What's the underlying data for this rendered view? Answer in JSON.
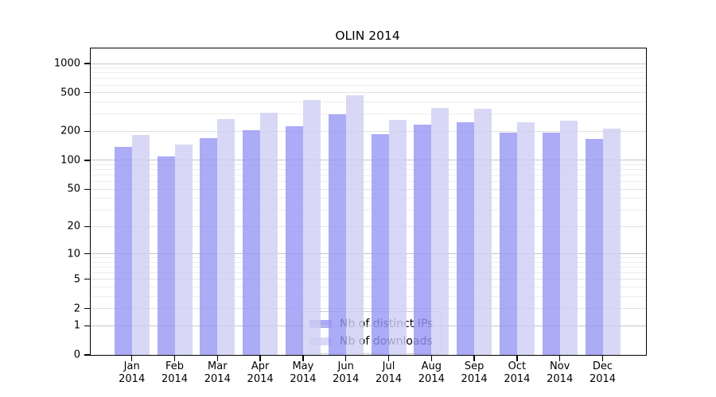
{
  "title": "OLIN 2014",
  "legend": {
    "items": [
      {
        "label": "Nb of distinct IPs",
        "color": "rgba(150,150,244,0.8)"
      },
      {
        "label": "Nb of downloads",
        "color": "rgba(206,206,244,0.8)"
      }
    ]
  },
  "colors": {
    "bar_distinct_ips": "rgba(150,150,244,0.8)",
    "bar_downloads": "rgba(206,206,244,0.8)",
    "gridline_decade": "#c6c6c6",
    "gridline_labeled": "#e2e2e2",
    "gridline_minor": "#ededed",
    "axis": "#000000"
  },
  "chart_data": {
    "type": "bar",
    "title": "OLIN 2014",
    "categories": [
      "Jan",
      "Feb",
      "Mar",
      "Apr",
      "May",
      "Jun",
      "Jul",
      "Aug",
      "Sep",
      "Oct",
      "Nov",
      "Dec"
    ],
    "year_label": "2014",
    "series": [
      {
        "name": "Nb of distinct IPs",
        "values": [
          137,
          110,
          170,
          205,
          225,
          298,
          188,
          236,
          250,
          192,
          195,
          165
        ]
      },
      {
        "name": "Nb of downloads",
        "values": [
          183,
          145,
          267,
          313,
          420,
          471,
          264,
          351,
          342,
          248,
          258,
          212
        ]
      }
    ],
    "yscale": "symlog (log10(1+v))",
    "yticks": [
      0,
      1,
      2,
      5,
      10,
      20,
      50,
      100,
      200,
      500,
      1000
    ],
    "decade_gridlines": [
      1,
      10,
      100,
      1000
    ],
    "labeled_gridlines": [
      2,
      5,
      20,
      50,
      200,
      500
    ],
    "minor_gridlines": [
      3,
      4,
      6,
      7,
      8,
      9,
      30,
      40,
      60,
      70,
      80,
      90,
      300,
      400,
      600,
      700,
      800,
      900
    ],
    "ylim": [
      0,
      1430
    ],
    "xlabel": "",
    "ylabel": "",
    "grid": "horizontal only",
    "legend_position": "inside lower-center"
  }
}
